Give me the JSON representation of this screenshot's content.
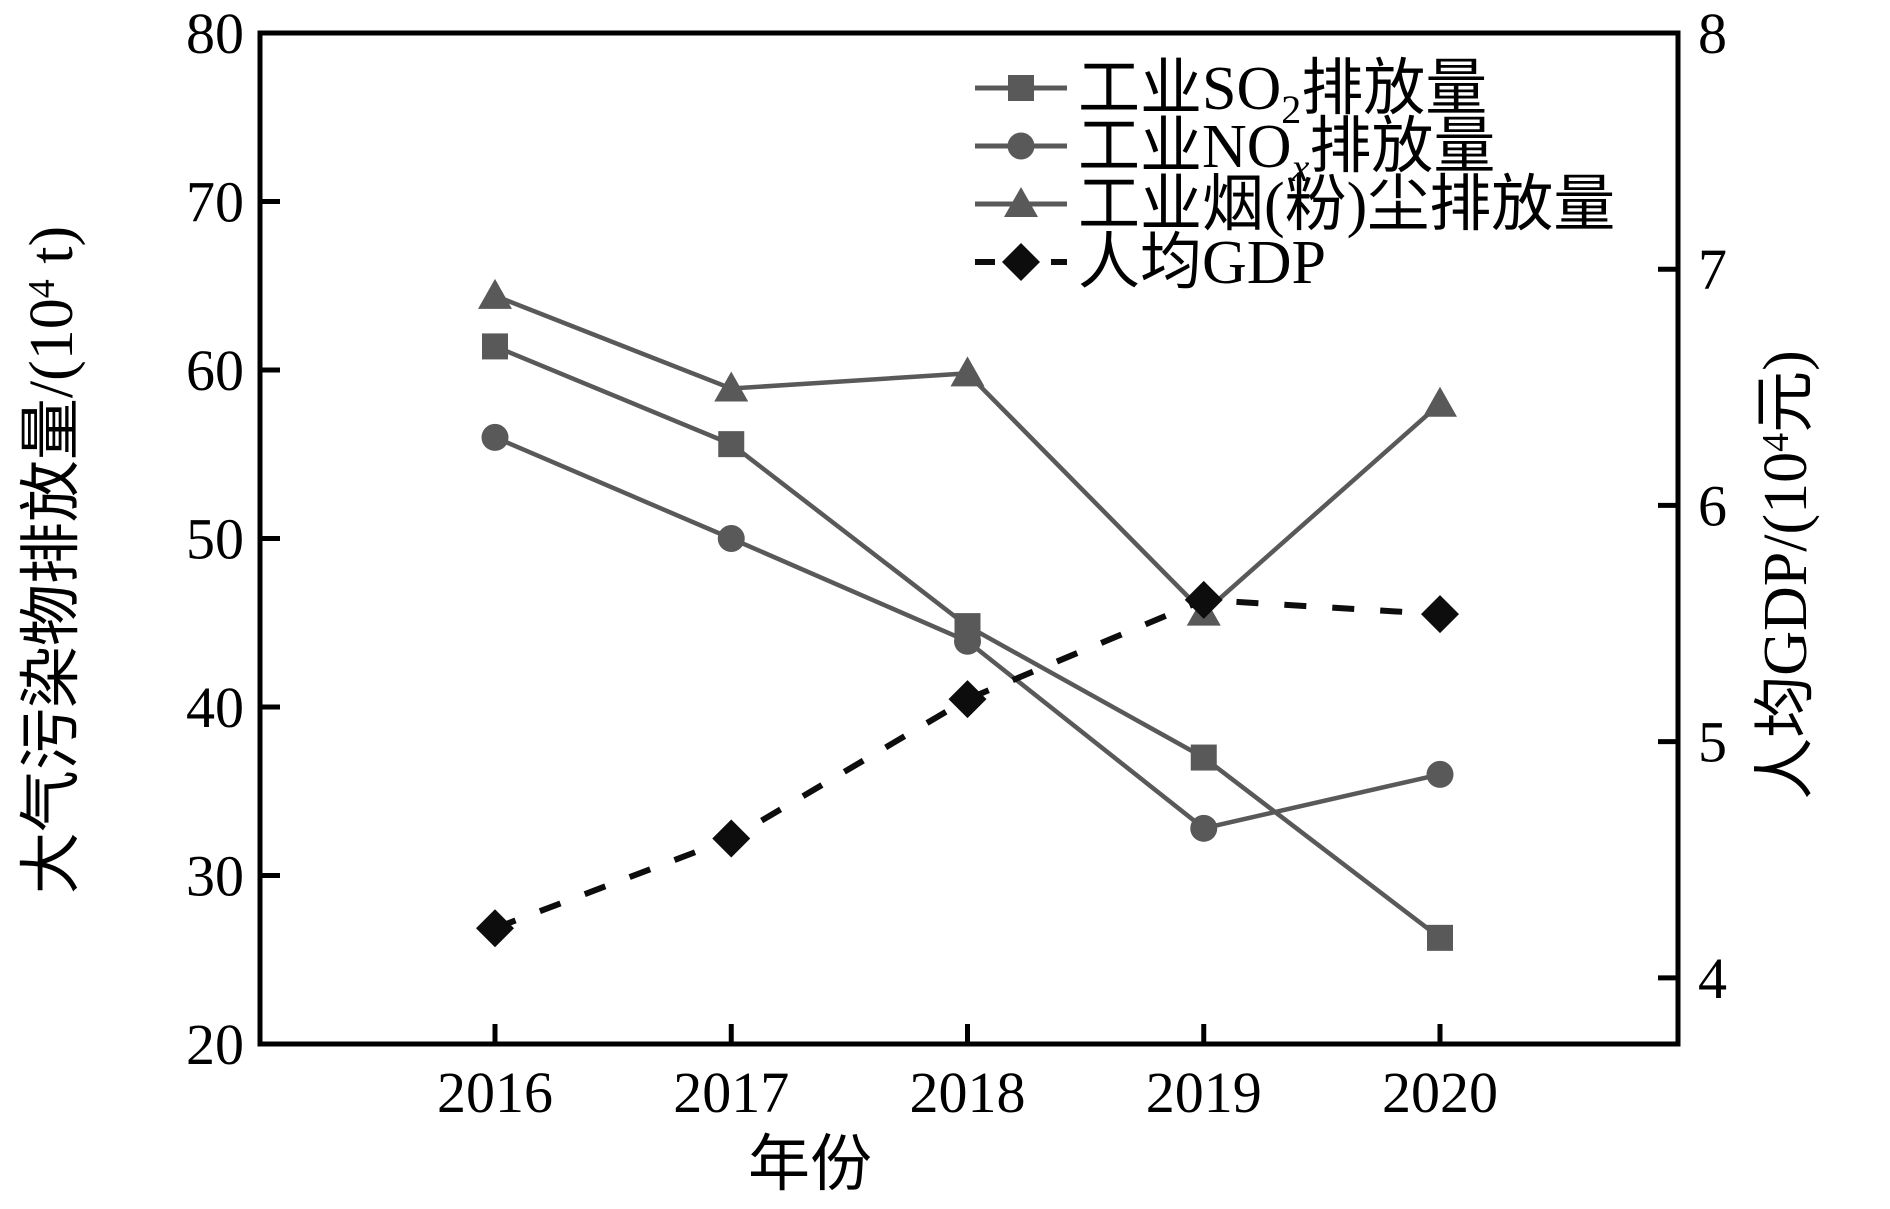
{
  "chart_data": {
    "type": "line",
    "title": "",
    "categories": [
      "2016",
      "2017",
      "2018",
      "2019",
      "2020"
    ],
    "x_axis": {
      "label": "年份",
      "tick_labels": [
        "2016",
        "2017",
        "2018",
        "2019",
        "2020"
      ]
    },
    "left_axis": {
      "label": "大气污染物排放量/(10⁴ t)",
      "label_pre": "大气污染物排放量/(10",
      "label_sup": "4",
      "label_post": " t)",
      "range": [
        20,
        80
      ],
      "ticks": [
        20,
        30,
        40,
        50,
        60,
        70,
        80
      ]
    },
    "right_axis": {
      "label": "人均GDP/(10⁴元)",
      "label_pre": "人均GDP/(10",
      "label_sup": "4",
      "label_post": "元)",
      "range": [
        3.72,
        8.0
      ],
      "ticks": [
        4,
        5,
        6,
        7,
        8
      ]
    },
    "series": [
      {
        "name": "工业SO2排放量",
        "label_parts": [
          {
            "t": "工业SO"
          },
          {
            "t": "2",
            "sub": true
          },
          {
            "t": "排放量"
          }
        ],
        "axis": "left",
        "marker": "square",
        "line": "solid",
        "color": "#595959",
        "values": [
          61.4,
          55.6,
          44.8,
          37.0,
          26.3
        ]
      },
      {
        "name": "工业NOx排放量",
        "label_parts": [
          {
            "t": "工业NO"
          },
          {
            "t": "x",
            "sub": true,
            "italic": true
          },
          {
            "t": "排放量"
          }
        ],
        "axis": "left",
        "marker": "circle",
        "line": "solid",
        "color": "#595959",
        "values": [
          56.0,
          50.0,
          43.9,
          32.8,
          36.0
        ]
      },
      {
        "name": "工业烟(粉)尘排放量",
        "label_parts": [
          {
            "t": "工业烟(粉)尘排放量"
          }
        ],
        "axis": "left",
        "marker": "triangle",
        "line": "solid",
        "color": "#595959",
        "values": [
          64.4,
          58.9,
          59.8,
          45.6,
          58.0
        ]
      },
      {
        "name": "人均GDP",
        "label_parts": [
          {
            "t": "人均GDP"
          }
        ],
        "axis": "right",
        "marker": "diamond",
        "line": "dashed",
        "color": "#0d0d0d",
        "values": [
          4.21,
          4.59,
          5.18,
          5.6,
          5.54
        ]
      }
    ],
    "legend_position": "top-right-inside",
    "grid": false,
    "background": "#ffffff",
    "axis_color": "#000000"
  }
}
